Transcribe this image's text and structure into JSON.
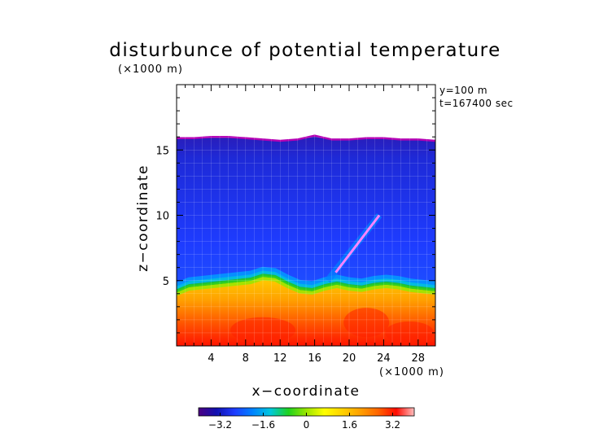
{
  "chart_data": {
    "type": "heatmap",
    "title": "disturbunce of potential temperature",
    "axis_unit_label": "(×1000 m)",
    "xlabel": "x−coordinate",
    "ylabel": "z−coordinate",
    "xlim": [
      0,
      30
    ],
    "ylim": [
      0,
      20
    ],
    "x_ticks": [
      4,
      8,
      12,
      16,
      20,
      24,
      28
    ],
    "y_ticks": [
      5,
      10,
      15
    ],
    "annotations": [
      "y=100 m",
      "t=167400 sec"
    ],
    "colorbar": {
      "ticks": [
        "−3.2",
        "−1.6",
        "0",
        "1.6",
        "3.2"
      ],
      "range": [
        -4,
        4
      ]
    },
    "field": {
      "top_boundary_z": [
        15.9,
        15.9,
        16.0,
        16.0,
        15.9,
        15.8,
        15.7,
        15.8,
        16.1,
        15.8,
        15.8,
        15.9,
        15.9,
        15.8,
        15.8,
        15.7
      ],
      "interface_z": [
        4.2,
        4.6,
        4.7,
        4.8,
        4.9,
        5.0,
        5.1,
        5.4,
        5.3,
        4.8,
        4.4,
        4.3,
        4.6,
        4.8,
        4.6,
        4.5,
        4.7,
        4.8,
        4.7,
        4.5,
        4.4,
        4.3
      ],
      "plume": {
        "x_range": [
          17.5,
          23.5
        ],
        "z_range": [
          5,
          10
        ]
      }
    }
  },
  "colors": {
    "colormap": [
      "#4b0082",
      "#1010b0",
      "#1e3cff",
      "#0082ff",
      "#00c8dc",
      "#1ed21e",
      "#9be600",
      "#ffff00",
      "#ffd200",
      "#ffa000",
      "#ff6400",
      "#ff0a00",
      "#ffbebe"
    ],
    "upper_field": "#1a2fe0",
    "upper_field_dark": "#2a1cb8",
    "interface": "#00a0ff",
    "lower_warm": "#ffb400",
    "lower_hot": "#ff2000",
    "top_boundary": "#b400b4",
    "plume": "#ff80ff"
  }
}
